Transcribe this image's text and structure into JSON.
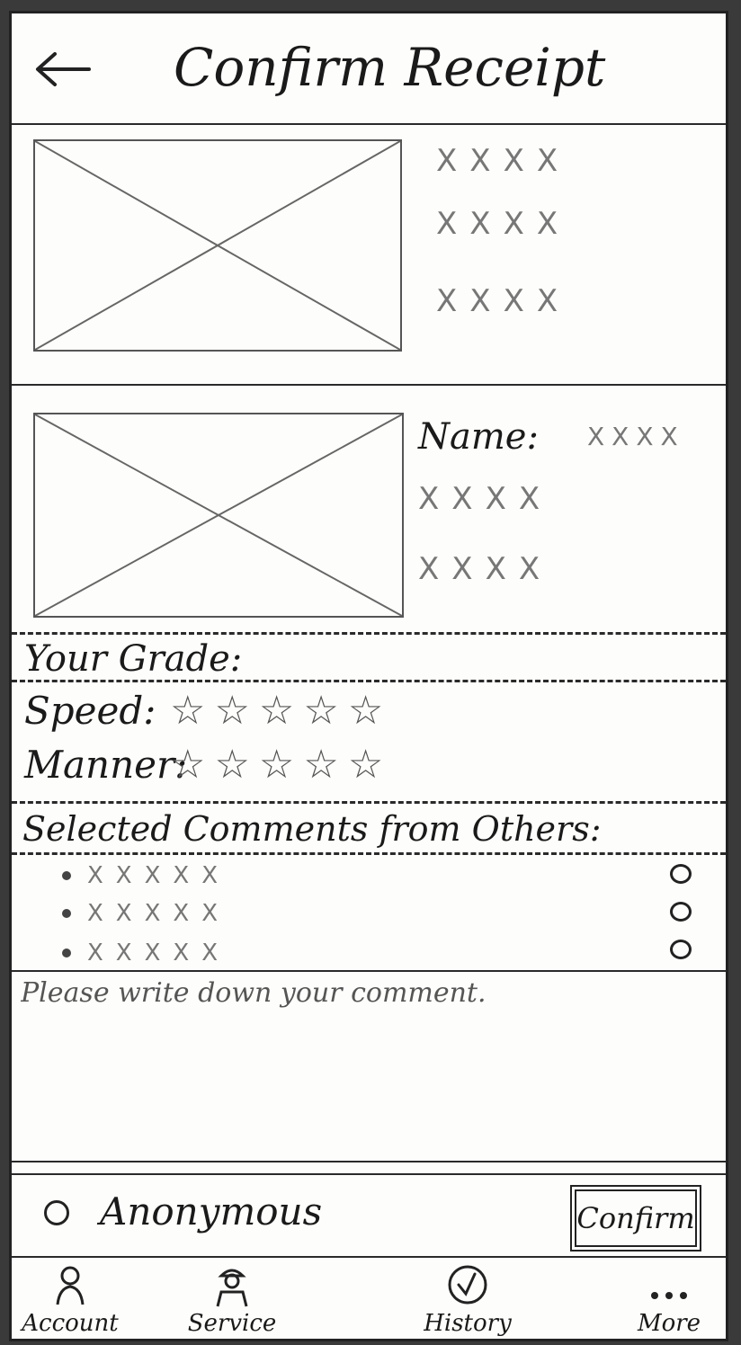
{
  "header": {
    "title": "Confirm Receipt"
  },
  "product": {
    "placeholder_lines": [
      "XXXX",
      "XXXX",
      "XXXX"
    ]
  },
  "provider": {
    "name_label": "Name:",
    "name_value": "XXXX",
    "lines": [
      "XXXX",
      "XXXX"
    ]
  },
  "grade": {
    "heading": "Your Grade:",
    "rows": [
      {
        "label": "Speed:",
        "stars": 5
      },
      {
        "label": "Manner:",
        "stars": 5
      }
    ]
  },
  "others": {
    "heading": "Selected Comments from Others:",
    "comments": [
      "XXXXX",
      "XXXXX",
      "XXXXX"
    ]
  },
  "comment": {
    "placeholder": "Please write down your comment."
  },
  "actions": {
    "anonymous_label": "Anonymous",
    "confirm_label": "Confirm"
  },
  "nav": {
    "items": [
      {
        "label": "Account",
        "icon": "account-icon"
      },
      {
        "label": "Service",
        "icon": "service-icon"
      },
      {
        "label": "History",
        "icon": "history-icon"
      },
      {
        "label": "More",
        "icon": "more-icon"
      }
    ]
  },
  "icons": {
    "star": "☆"
  }
}
